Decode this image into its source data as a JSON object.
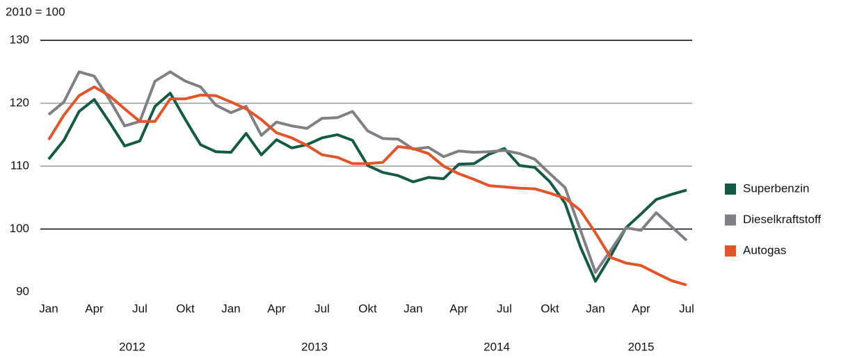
{
  "chart_data": {
    "type": "line",
    "y_axis_label": "2010 = 100",
    "categories": [
      "Jan",
      null,
      null,
      "Apr",
      null,
      null,
      "Jul",
      null,
      null,
      "Okt",
      null,
      null,
      "Jan",
      null,
      null,
      "Apr",
      null,
      null,
      "Jul",
      null,
      null,
      "Okt",
      null,
      null,
      "Jan",
      null,
      null,
      "Apr",
      null,
      null,
      "Jul",
      null,
      null,
      "Okt",
      null,
      null,
      "Jan",
      null,
      null,
      "Apr",
      null,
      null,
      "Jul"
    ],
    "year_groups": [
      "2012",
      "2013",
      "2014",
      "2015"
    ],
    "series": [
      {
        "name": "Superbenzin",
        "color": "#145a44",
        "values": [
          111.1,
          114.1,
          118.7,
          120.6,
          117.0,
          113.2,
          114.0,
          119.5,
          121.6,
          117.4,
          113.4,
          112.3,
          112.2,
          115.2,
          111.8,
          114.2,
          112.9,
          113.4,
          114.5,
          115.0,
          114.1,
          110.1,
          109.0,
          108.5,
          107.5,
          108.2,
          108.0,
          110.3,
          110.4,
          111.9,
          112.8,
          110.1,
          109.8,
          107.5,
          104.1,
          97.2,
          91.7,
          95.7,
          100.2,
          102.4,
          104.7,
          105.5,
          106.2
        ]
      },
      {
        "name": "Dieselkraftstoff",
        "color": "#808084",
        "values": [
          118.2,
          120.2,
          125.0,
          124.3,
          120.6,
          116.4,
          117.1,
          123.5,
          125.0,
          123.5,
          122.6,
          119.7,
          118.5,
          119.5,
          114.9,
          117.0,
          116.4,
          116.0,
          117.6,
          117.7,
          118.7,
          115.6,
          114.4,
          114.3,
          112.7,
          113.0,
          111.5,
          112.4,
          112.2,
          112.3,
          112.5,
          112.0,
          111.1,
          108.8,
          106.6,
          99.9,
          93.1,
          96.6,
          100.2,
          99.8,
          102.6,
          100.4,
          98.2
        ]
      },
      {
        "name": "Autogas",
        "color": "#e2542a",
        "values": [
          114.2,
          118.1,
          121.2,
          122.6,
          121.2,
          119.1,
          117.1,
          117.1,
          120.7,
          120.7,
          121.3,
          121.2,
          120.2,
          119.1,
          117.4,
          115.3,
          114.5,
          113.3,
          111.8,
          111.4,
          110.4,
          110.4,
          110.6,
          113.1,
          112.8,
          112.0,
          110.0,
          108.8,
          107.9,
          106.9,
          106.7,
          106.5,
          106.4,
          105.7,
          104.9,
          103.0,
          99.4,
          95.5,
          94.6,
          94.2,
          93.0,
          91.8,
          91.1
        ]
      }
    ],
    "ylim": [
      90,
      130
    ],
    "yticks": [
      90,
      100,
      110,
      120,
      130
    ],
    "grid_colors": [
      null,
      "#000000",
      "#999999",
      "#999999",
      "#000000"
    ],
    "legend": "right"
  }
}
